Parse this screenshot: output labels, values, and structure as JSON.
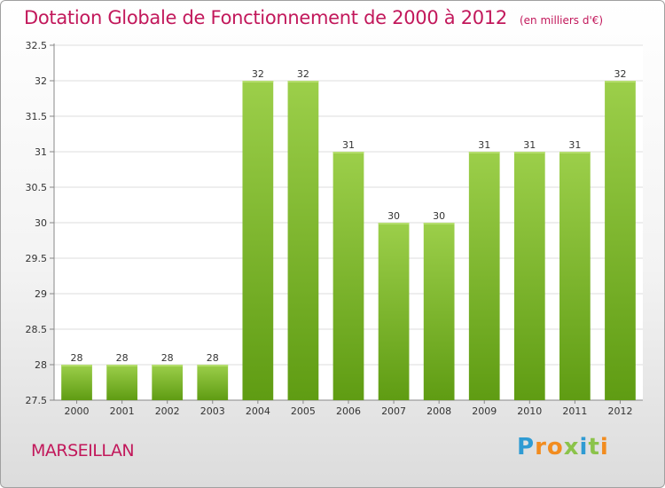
{
  "title": "Dotation Globale de Fonctionnement de 2000 à 2012",
  "unit": "(en milliers d'€)",
  "city": "MARSEILLAN",
  "logo": {
    "letters": [
      "P",
      "r",
      "o",
      "x",
      "i",
      "t",
      "i"
    ],
    "colors": [
      "#2f9bd3",
      "#f28c1f",
      "#f28c1f",
      "#8bc34a",
      "#2f9bd3",
      "#8bc34a",
      "#f28c1f"
    ]
  },
  "colors": {
    "title": "#c2185b",
    "bar_top": "#9ccf4a",
    "bar_bottom": "#5f9c13"
  },
  "chart_data": {
    "type": "bar",
    "title": "Dotation Globale de Fonctionnement de 2000 à 2012",
    "categories": [
      "2000",
      "2001",
      "2002",
      "2003",
      "2004",
      "2005",
      "2006",
      "2007",
      "2008",
      "2009",
      "2010",
      "2011",
      "2012"
    ],
    "values": [
      28,
      28,
      28,
      28,
      32,
      32,
      31,
      30,
      30,
      31,
      31,
      31,
      32
    ],
    "labels": [
      "28",
      "28",
      "28",
      "28",
      "32",
      "32",
      "31",
      "30",
      "30",
      "31",
      "31",
      "31",
      "32"
    ],
    "ylim": [
      27.5,
      32.5
    ],
    "yticks": [
      "27.5",
      "28",
      "28.5",
      "29",
      "29.5",
      "30",
      "30.5",
      "31",
      "31.5",
      "32",
      "32.5"
    ],
    "grid": true
  }
}
